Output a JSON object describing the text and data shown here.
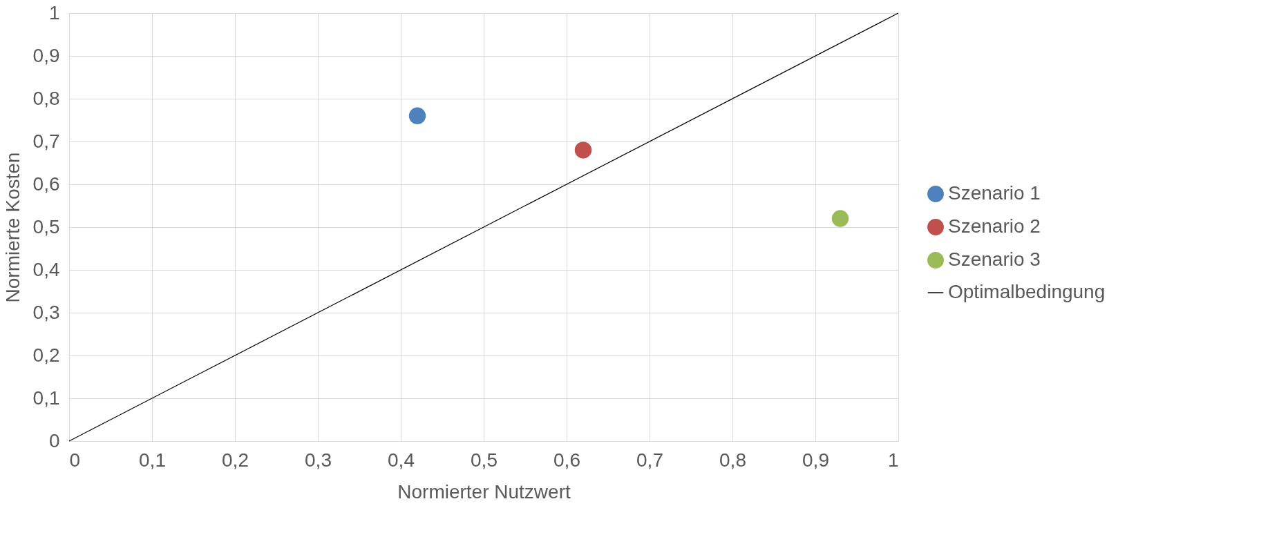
{
  "chart_data": {
    "type": "scatter",
    "xlabel": "Normierter Nutzwert",
    "ylabel": "Normierte Kosten",
    "xlim": [
      0,
      1
    ],
    "ylim": [
      0,
      1
    ],
    "xticks": [
      0,
      {
        "value": 0.1,
        "label": "0,1"
      },
      {
        "value": 0.2,
        "label": "0,2"
      },
      {
        "value": 0.3,
        "label": "0,3"
      },
      {
        "value": 0.4,
        "label": "0,4"
      },
      {
        "value": 0.5,
        "label": "0,5"
      },
      {
        "value": 0.6,
        "label": "0,6"
      },
      {
        "value": 0.7,
        "label": "0,7"
      },
      {
        "value": 0.8,
        "label": "0,8"
      },
      {
        "value": 0.9,
        "label": "0,9"
      },
      1
    ],
    "yticks": [
      0,
      {
        "value": 0.1,
        "label": "0,1"
      },
      {
        "value": 0.2,
        "label": "0,2"
      },
      {
        "value": 0.3,
        "label": "0,3"
      },
      {
        "value": 0.4,
        "label": "0,4"
      },
      {
        "value": 0.5,
        "label": "0,5"
      },
      {
        "value": 0.6,
        "label": "0,6"
      },
      {
        "value": 0.7,
        "label": "0,7"
      },
      {
        "value": 0.8,
        "label": "0,8"
      },
      {
        "value": 0.9,
        "label": "0,9"
      },
      1
    ],
    "grid": true,
    "legend": "right",
    "series": [
      {
        "name": "Szenario 1",
        "color": "#4f81bd",
        "x": [
          0.42
        ],
        "values": [
          0.76
        ],
        "marker": "circle"
      },
      {
        "name": "Szenario 2",
        "color": "#c0504d",
        "x": [
          0.62
        ],
        "values": [
          0.68
        ],
        "marker": "circle"
      },
      {
        "name": "Szenario 3",
        "color": "#9bbb59",
        "x": [
          0.93
        ],
        "values": [
          0.52
        ],
        "marker": "circle"
      },
      {
        "name": "Optimalbedingung",
        "type": "line",
        "color": "#000000",
        "x": [
          0,
          1
        ],
        "values": [
          0,
          1
        ],
        "line_style": "solid"
      }
    ]
  }
}
